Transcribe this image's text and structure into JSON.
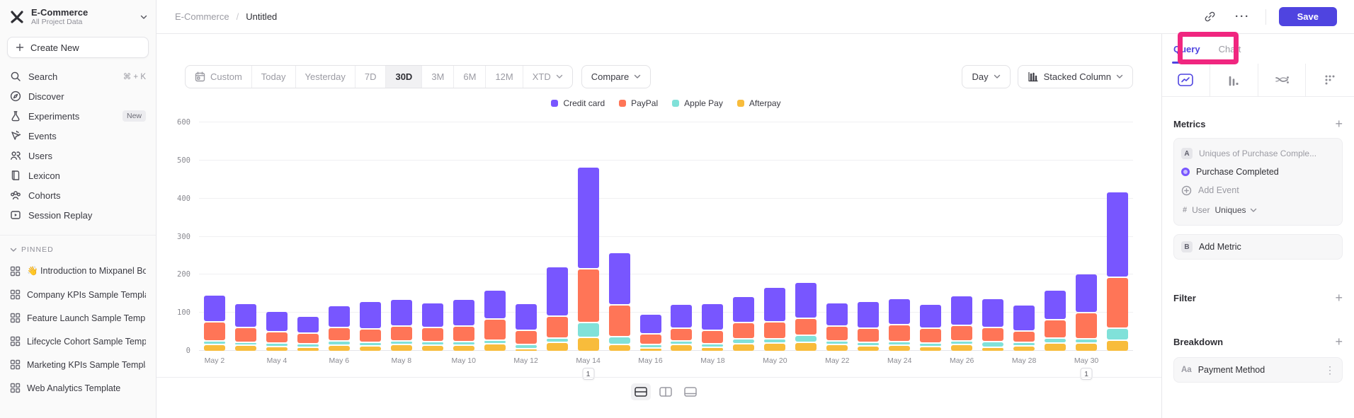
{
  "sidebar": {
    "workspace": {
      "name": "E-Commerce",
      "subtitle": "All Project Data"
    },
    "create_new_label": "Create New",
    "items": [
      {
        "icon": "search",
        "label": "Search",
        "accessory": "⌘ + K"
      },
      {
        "icon": "discover",
        "label": "Discover"
      },
      {
        "icon": "experiments",
        "label": "Experiments",
        "badge": "New"
      },
      {
        "icon": "events",
        "label": "Events"
      },
      {
        "icon": "users",
        "label": "Users"
      },
      {
        "icon": "lexicon",
        "label": "Lexicon"
      },
      {
        "icon": "cohorts",
        "label": "Cohorts"
      },
      {
        "icon": "session-replay",
        "label": "Session Replay"
      }
    ],
    "pinned_header": "PINNED",
    "pinned_items": [
      "👋 Introduction to Mixpanel Bo",
      "Company KPIs Sample Templat",
      "Feature Launch Sample Templa",
      "Lifecycle Cohort Sample Temp",
      "Marketing KPIs Sample Templat",
      "Web Analytics Template"
    ]
  },
  "topbar": {
    "breadcrumb_root": "E-Commerce",
    "breadcrumb_separator": "/",
    "breadcrumb_current": "Untitled",
    "save_label": "Save"
  },
  "toolbar": {
    "date_ranges": [
      "Custom",
      "Today",
      "Yesterday",
      "7D",
      "30D",
      "3M",
      "6M",
      "12M",
      "XTD"
    ],
    "selected_range": "30D",
    "compare_label": "Compare",
    "granularity_label": "Day",
    "chart_type_label": "Stacked Column"
  },
  "right_panel": {
    "tab_query": "Query",
    "tab_chart": "Chart",
    "icon_tabs": [
      "insights",
      "funnels",
      "flows",
      "retention"
    ],
    "active_icon_tab": "insights",
    "metrics_title": "Metrics",
    "metric_a": {
      "chip": "A",
      "summary": "Uniques of Purchase Comple...",
      "event_name": "Purchase Completed",
      "add_event_label": "Add Event",
      "agg_entity": "User",
      "agg_value": "Uniques"
    },
    "metric_b": {
      "chip": "B",
      "label": "Add Metric"
    },
    "filter_title": "Filter",
    "breakdown_title": "Breakdown",
    "breakdown_item": {
      "type_icon": "Aa",
      "label": "Payment Method"
    },
    "annotation_color": "#f0267f"
  },
  "chart_data": {
    "type": "bar",
    "stacked": true,
    "title": "",
    "xlabel": "",
    "ylabel": "",
    "ylim": [
      0,
      600
    ],
    "yticks": [
      0,
      100,
      200,
      300,
      400,
      500,
      600
    ],
    "grid": true,
    "legend_position": "top-center",
    "x_label_every": 2,
    "categories": [
      "May 2",
      "May 3",
      "May 4",
      "May 5",
      "May 6",
      "May 7",
      "May 8",
      "May 9",
      "May 10",
      "May 11",
      "May 12",
      "May 13",
      "May 14",
      "May 15",
      "May 16",
      "May 17",
      "May 18",
      "May 19",
      "May 20",
      "May 21",
      "May 22",
      "May 23",
      "May 24",
      "May 25",
      "May 26",
      "May 27",
      "May 28",
      "May 29",
      "May 30",
      "May 31"
    ],
    "series": [
      {
        "name": "Credit card",
        "color": "#7856ff",
        "values": [
          70,
          63,
          54,
          44,
          56,
          71,
          71,
          64,
          71,
          77,
          71,
          130,
          266,
          138,
          52,
          62,
          71,
          69,
          91,
          95,
          61,
          70,
          70,
          63,
          78,
          76,
          69,
          79,
          101,
          223
        ]
      },
      {
        "name": "PayPal",
        "color": "#ff7557",
        "values": [
          50,
          39,
          29,
          28,
          37,
          35,
          38,
          38,
          40,
          55,
          37,
          57,
          141,
          84,
          27,
          34,
          34,
          43,
          44,
          46,
          39,
          37,
          44,
          39,
          42,
          38,
          30,
          48,
          70,
          135
        ]
      },
      {
        "name": "Apple Pay",
        "color": "#80e1d9",
        "values": [
          10,
          8,
          10,
          9,
          10,
          10,
          10,
          10,
          9,
          10,
          10,
          12,
          40,
          21,
          9,
          10,
          9,
          12,
          12,
          18,
          9,
          10,
          9,
          9,
          9,
          14,
          9,
          12,
          10,
          32
        ]
      },
      {
        "name": "Afterpay",
        "color": "#f8bc3b",
        "values": [
          18,
          17,
          13,
          12,
          17,
          15,
          18,
          16,
          17,
          20,
          8,
          24,
          37,
          18,
          10,
          18,
          12,
          21,
          22,
          24,
          19,
          15,
          17,
          13,
          18,
          12,
          15,
          23,
          23,
          29
        ]
      }
    ],
    "stack_bottom_to_top": [
      "Afterpay",
      "Apple Pay",
      "PayPal",
      "Credit card"
    ],
    "annotations": [
      {
        "index": 12,
        "label": "1"
      },
      {
        "index": 28,
        "label": "1"
      }
    ]
  }
}
